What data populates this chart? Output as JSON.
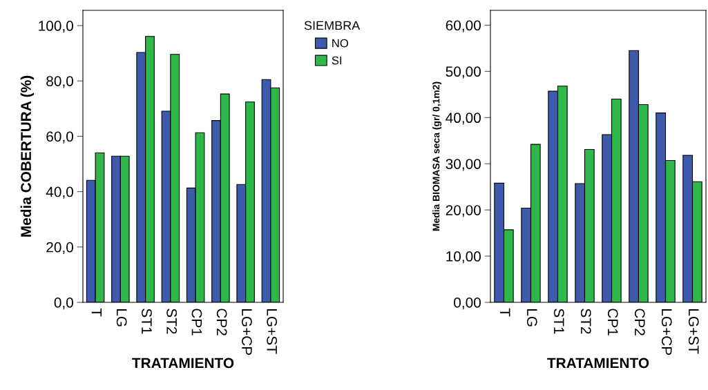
{
  "chart_data": [
    {
      "type": "bar",
      "xlabel": "TRATAMIENTO",
      "ylabel": "Media COBERTURA (%)",
      "legend_title": "SIEMBRA",
      "legend": "right",
      "grid": false,
      "categories": [
        "T",
        "LG",
        "ST1",
        "ST2",
        "CP1",
        "CP2",
        "LG+CP",
        "LG+ST"
      ],
      "ylim": [
        0,
        105.5
      ],
      "yticks": [
        {
          "value": 0,
          "label": "0,0"
        },
        {
          "value": 20,
          "label": "20,0"
        },
        {
          "value": 40,
          "label": "40,0"
        },
        {
          "value": 60,
          "label": "60,0"
        },
        {
          "value": 80,
          "label": "80,0"
        },
        {
          "value": 100,
          "label": "100,0"
        }
      ],
      "series": [
        {
          "name": "NO",
          "color": "#3e5aad",
          "values": [
            44.1,
            52.8,
            90.3,
            69.1,
            41.3,
            65.7,
            42.6,
            80.5
          ]
        },
        {
          "name": "SI",
          "color": "#2eb84a",
          "values": [
            54.0,
            52.8,
            96.1,
            89.6,
            61.3,
            75.3,
            72.4,
            77.5
          ]
        }
      ]
    },
    {
      "type": "bar",
      "xlabel": "TRATAMIENTO",
      "ylabel": "Media BIOMASA seca (gr/ 0,1m2)",
      "grid": false,
      "categories": [
        "T",
        "LG",
        "ST1",
        "ST2",
        "CP1",
        "CP2",
        "LG+CP",
        "LG+ST"
      ],
      "ylim": [
        0,
        63.2
      ],
      "yticks": [
        {
          "value": 0,
          "label": "0,00"
        },
        {
          "value": 10,
          "label": "10,00"
        },
        {
          "value": 20,
          "label": "20,00"
        },
        {
          "value": 30,
          "label": "30,00"
        },
        {
          "value": 40,
          "label": "40,00"
        },
        {
          "value": 50,
          "label": "50,00"
        },
        {
          "value": 60,
          "label": "60,00"
        }
      ],
      "series": [
        {
          "color": "#3e5aad",
          "values": [
            25.8,
            20.4,
            45.7,
            25.7,
            36.3,
            54.5,
            41.0,
            31.8
          ]
        },
        {
          "color": "#2eb84a",
          "values": [
            15.7,
            34.2,
            46.8,
            33.1,
            44.0,
            42.8,
            30.7,
            26.1
          ]
        }
      ]
    }
  ]
}
